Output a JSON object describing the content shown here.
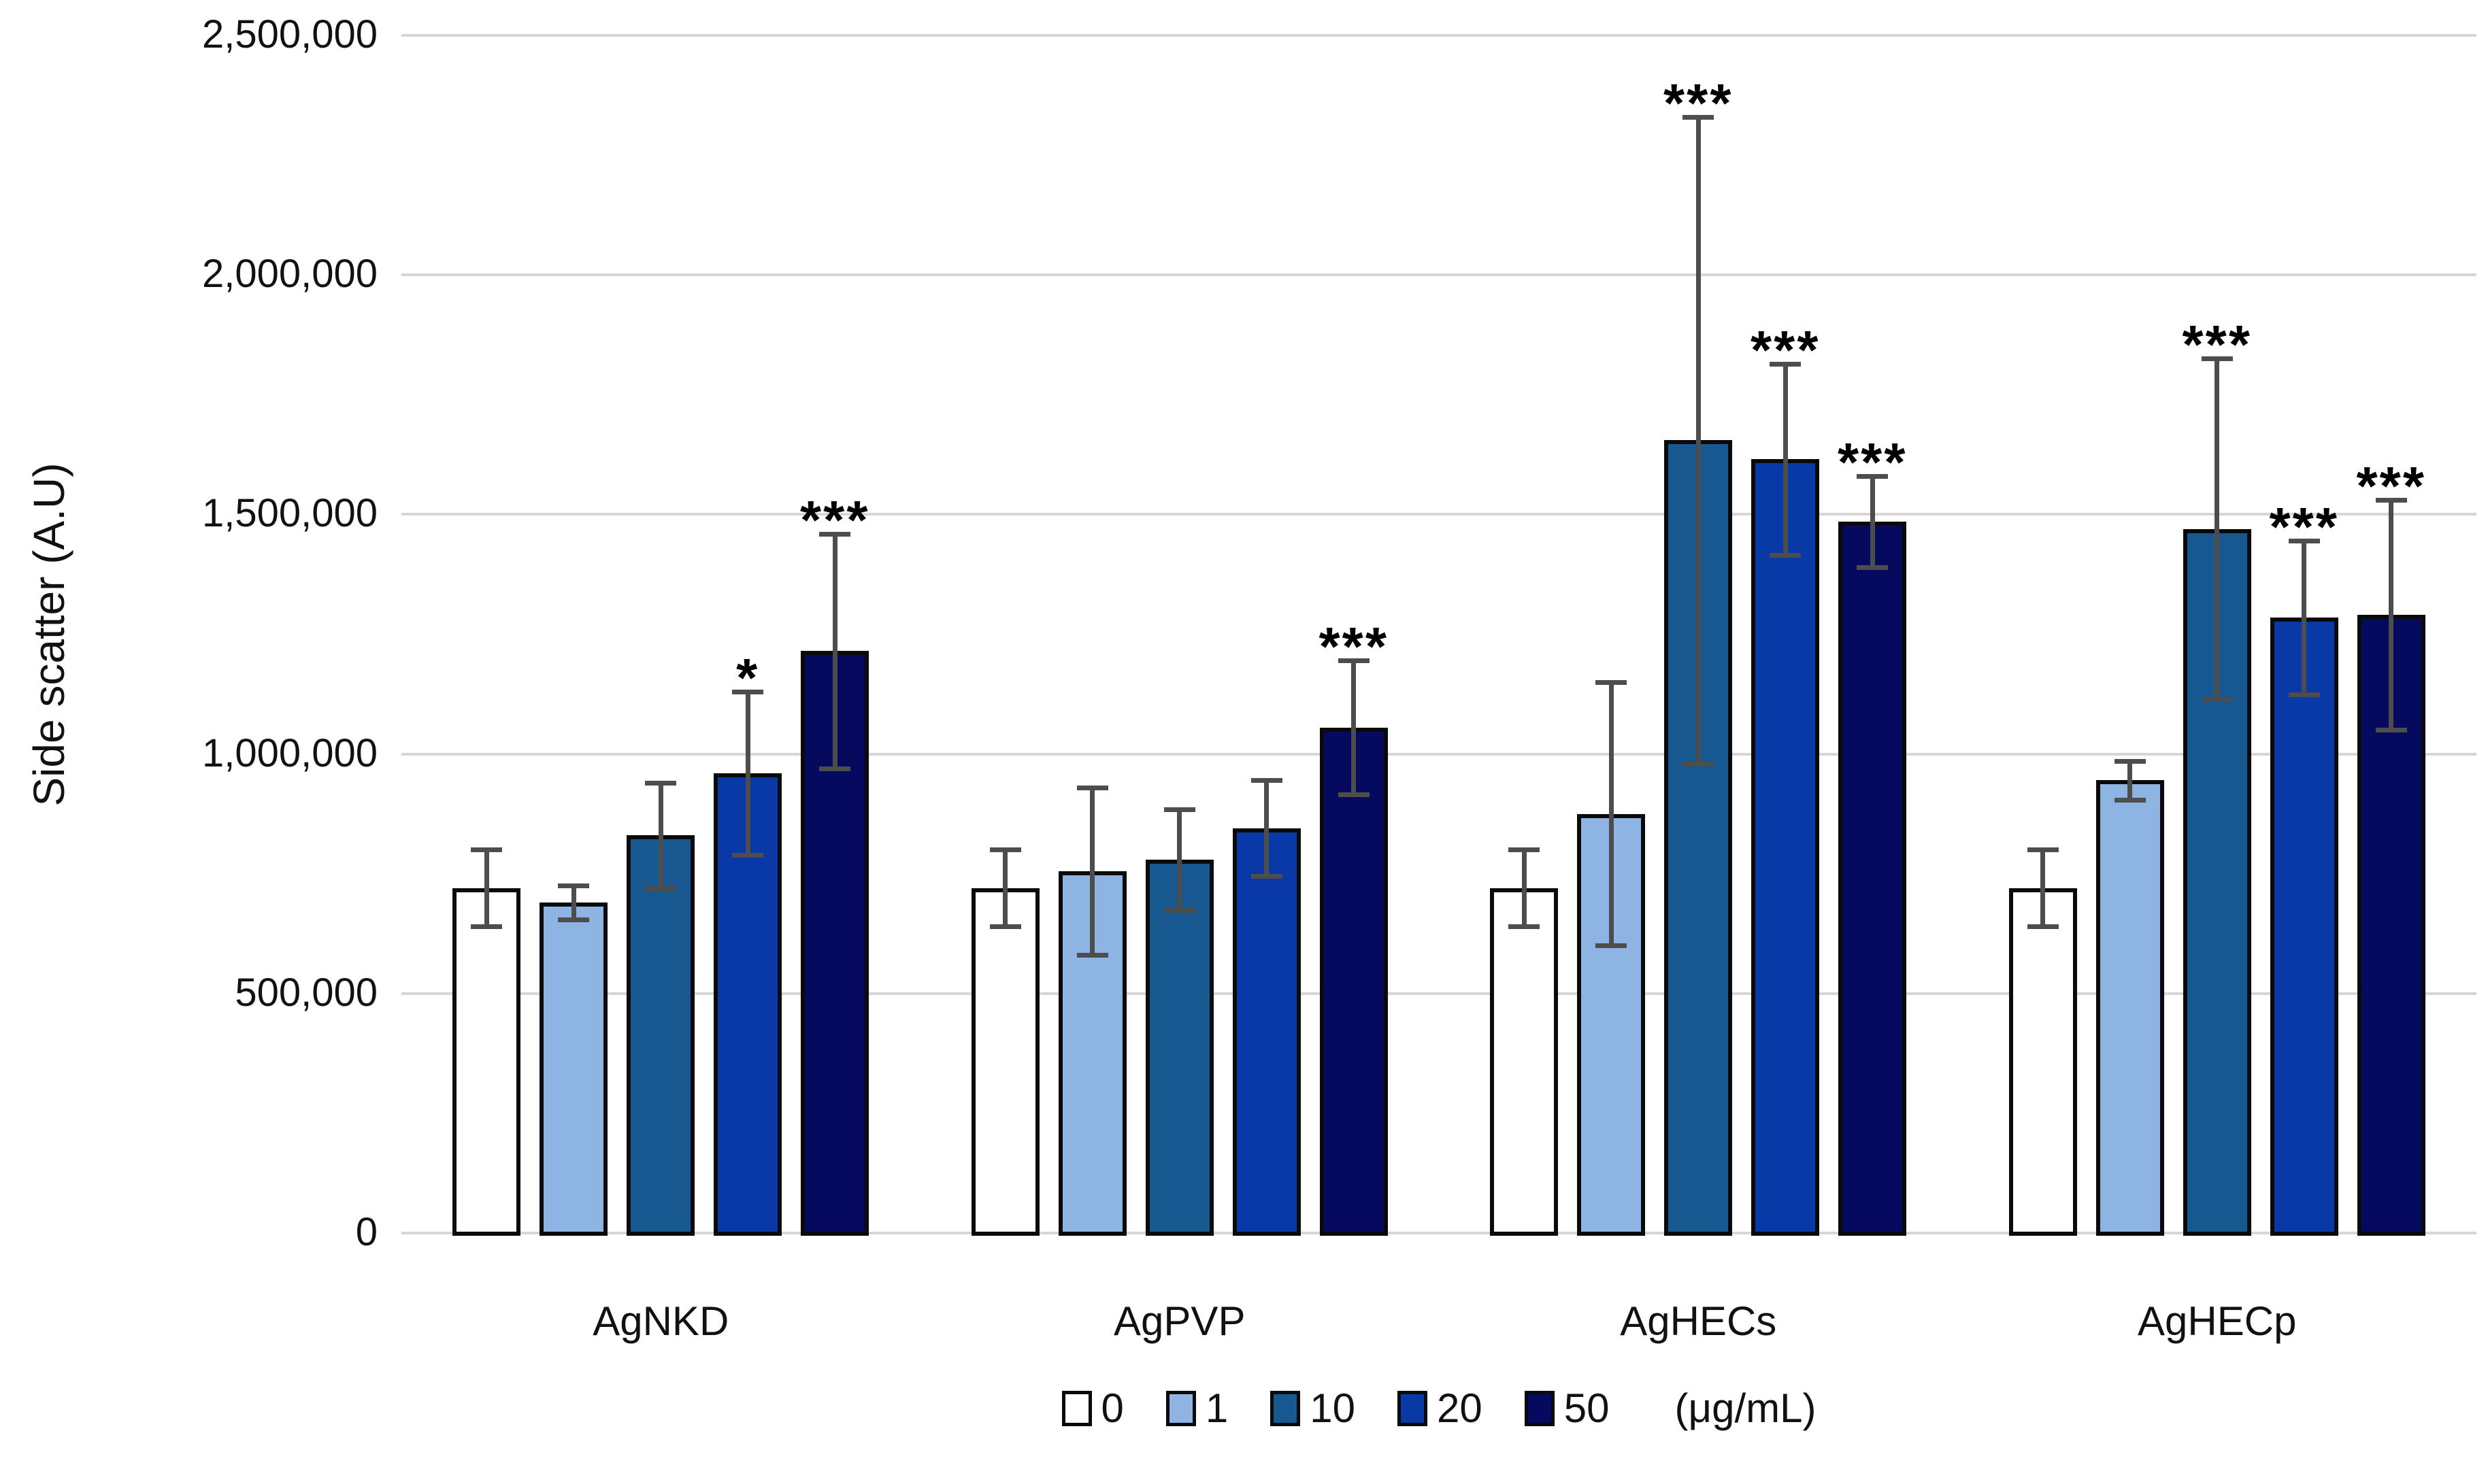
{
  "chart_data": {
    "type": "bar",
    "title": "",
    "xlabel": "",
    "ylabel": "Side scatter (A.U)",
    "ylim": [
      0,
      2500000
    ],
    "grid": true,
    "legend_position": "bottom",
    "legend_unit_label": "(μg/mL)",
    "yticks": [
      {
        "value": 0,
        "label": "0"
      },
      {
        "value": 500000,
        "label": "500,000"
      },
      {
        "value": 1000000,
        "label": "1,000,000"
      },
      {
        "value": 1500000,
        "label": "1,500,000"
      },
      {
        "value": 2000000,
        "label": "2,000,000"
      },
      {
        "value": 2500000,
        "label": "2,500,000"
      }
    ],
    "categories": [
      "AgNKD",
      "AgPVP",
      "AgHECs",
      "AgHECp"
    ],
    "series": [
      {
        "name": "0",
        "color": "#FFFFFF",
        "values": [
          720000,
          720000,
          720000,
          720000
        ],
        "errors": [
          80000,
          80000,
          80000,
          80000
        ],
        "sig": [
          "",
          "",
          "",
          ""
        ]
      },
      {
        "name": "1",
        "color": "#8EB4E3",
        "values": [
          690000,
          755000,
          875000,
          945000
        ],
        "errors": [
          35000,
          175000,
          275000,
          40000
        ],
        "sig": [
          "",
          "",
          "",
          ""
        ]
      },
      {
        "name": "10",
        "color": "#16588F",
        "values": [
          830000,
          780000,
          1655000,
          1470000
        ],
        "errors": [
          110000,
          105000,
          675000,
          355000
        ],
        "sig": [
          "",
          "",
          "***",
          "***"
        ]
      },
      {
        "name": "20",
        "color": "#0939A6",
        "values": [
          960000,
          845000,
          1615000,
          1285000
        ],
        "errors": [
          170000,
          100000,
          200000,
          160000
        ],
        "sig": [
          "*",
          "",
          "***",
          "***"
        ]
      },
      {
        "name": "50",
        "color": "#050A5E",
        "values": [
          1215000,
          1055000,
          1485000,
          1290000
        ],
        "errors": [
          245000,
          140000,
          95000,
          240000
        ],
        "sig": [
          "***",
          "***",
          "***",
          "***"
        ]
      }
    ],
    "colors": {
      "bar_border": "#0a0a0a",
      "error_bar": "#4d4d4d",
      "gridline": "#d6d6d6",
      "significance": "#000000"
    }
  }
}
